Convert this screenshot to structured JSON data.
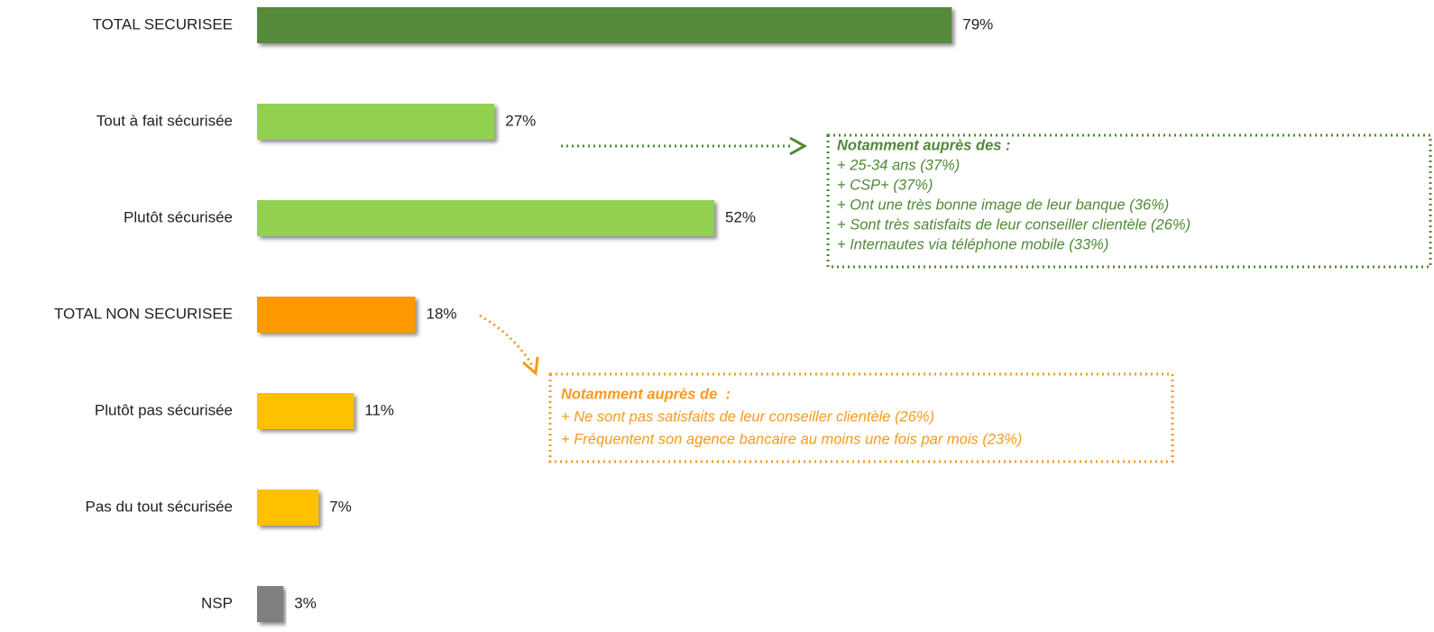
{
  "chart_data": {
    "type": "bar",
    "categories": [
      "TOTAL SECURISEE",
      "Tout à fait sécurisée",
      "Plutôt sécurisée",
      "TOTAL NON SECURISEE",
      "Plutôt pas sécurisée",
      "Pas du tout sécurisée",
      "NSP"
    ],
    "values": [
      79,
      27,
      52,
      18,
      11,
      7,
      3
    ],
    "value_labels": [
      "79%",
      "27%",
      "52%",
      "18%",
      "11%",
      "7%",
      "3%"
    ],
    "colors": [
      "#548b3a",
      "#92d050",
      "#92d050",
      "#ff9900",
      "#ffc000",
      "#ffc000",
      "#7f7f7f"
    ],
    "annotations": [
      {
        "color": "#4f8a36",
        "title": "Notamment auprès des :",
        "lines": [
          "+ 25-34 ans (37%)",
          "+ CSP+ (37%)",
          "+ Ont une très bonne image de leur banque (36%)",
          "+ Sont très satisfaits de leur conseiller clientèle (26%)",
          "+ Internautes via téléphone mobile (33%)"
        ]
      },
      {
        "color": "#f79a1e",
        "title": "Notamment auprès de  :",
        "lines": [
          "+ Ne sont pas satisfaits de leur conseiller clientèle (26%)",
          "+ Fréquentent son agence bancaire au moins une fois par mois (23%)"
        ]
      }
    ]
  }
}
